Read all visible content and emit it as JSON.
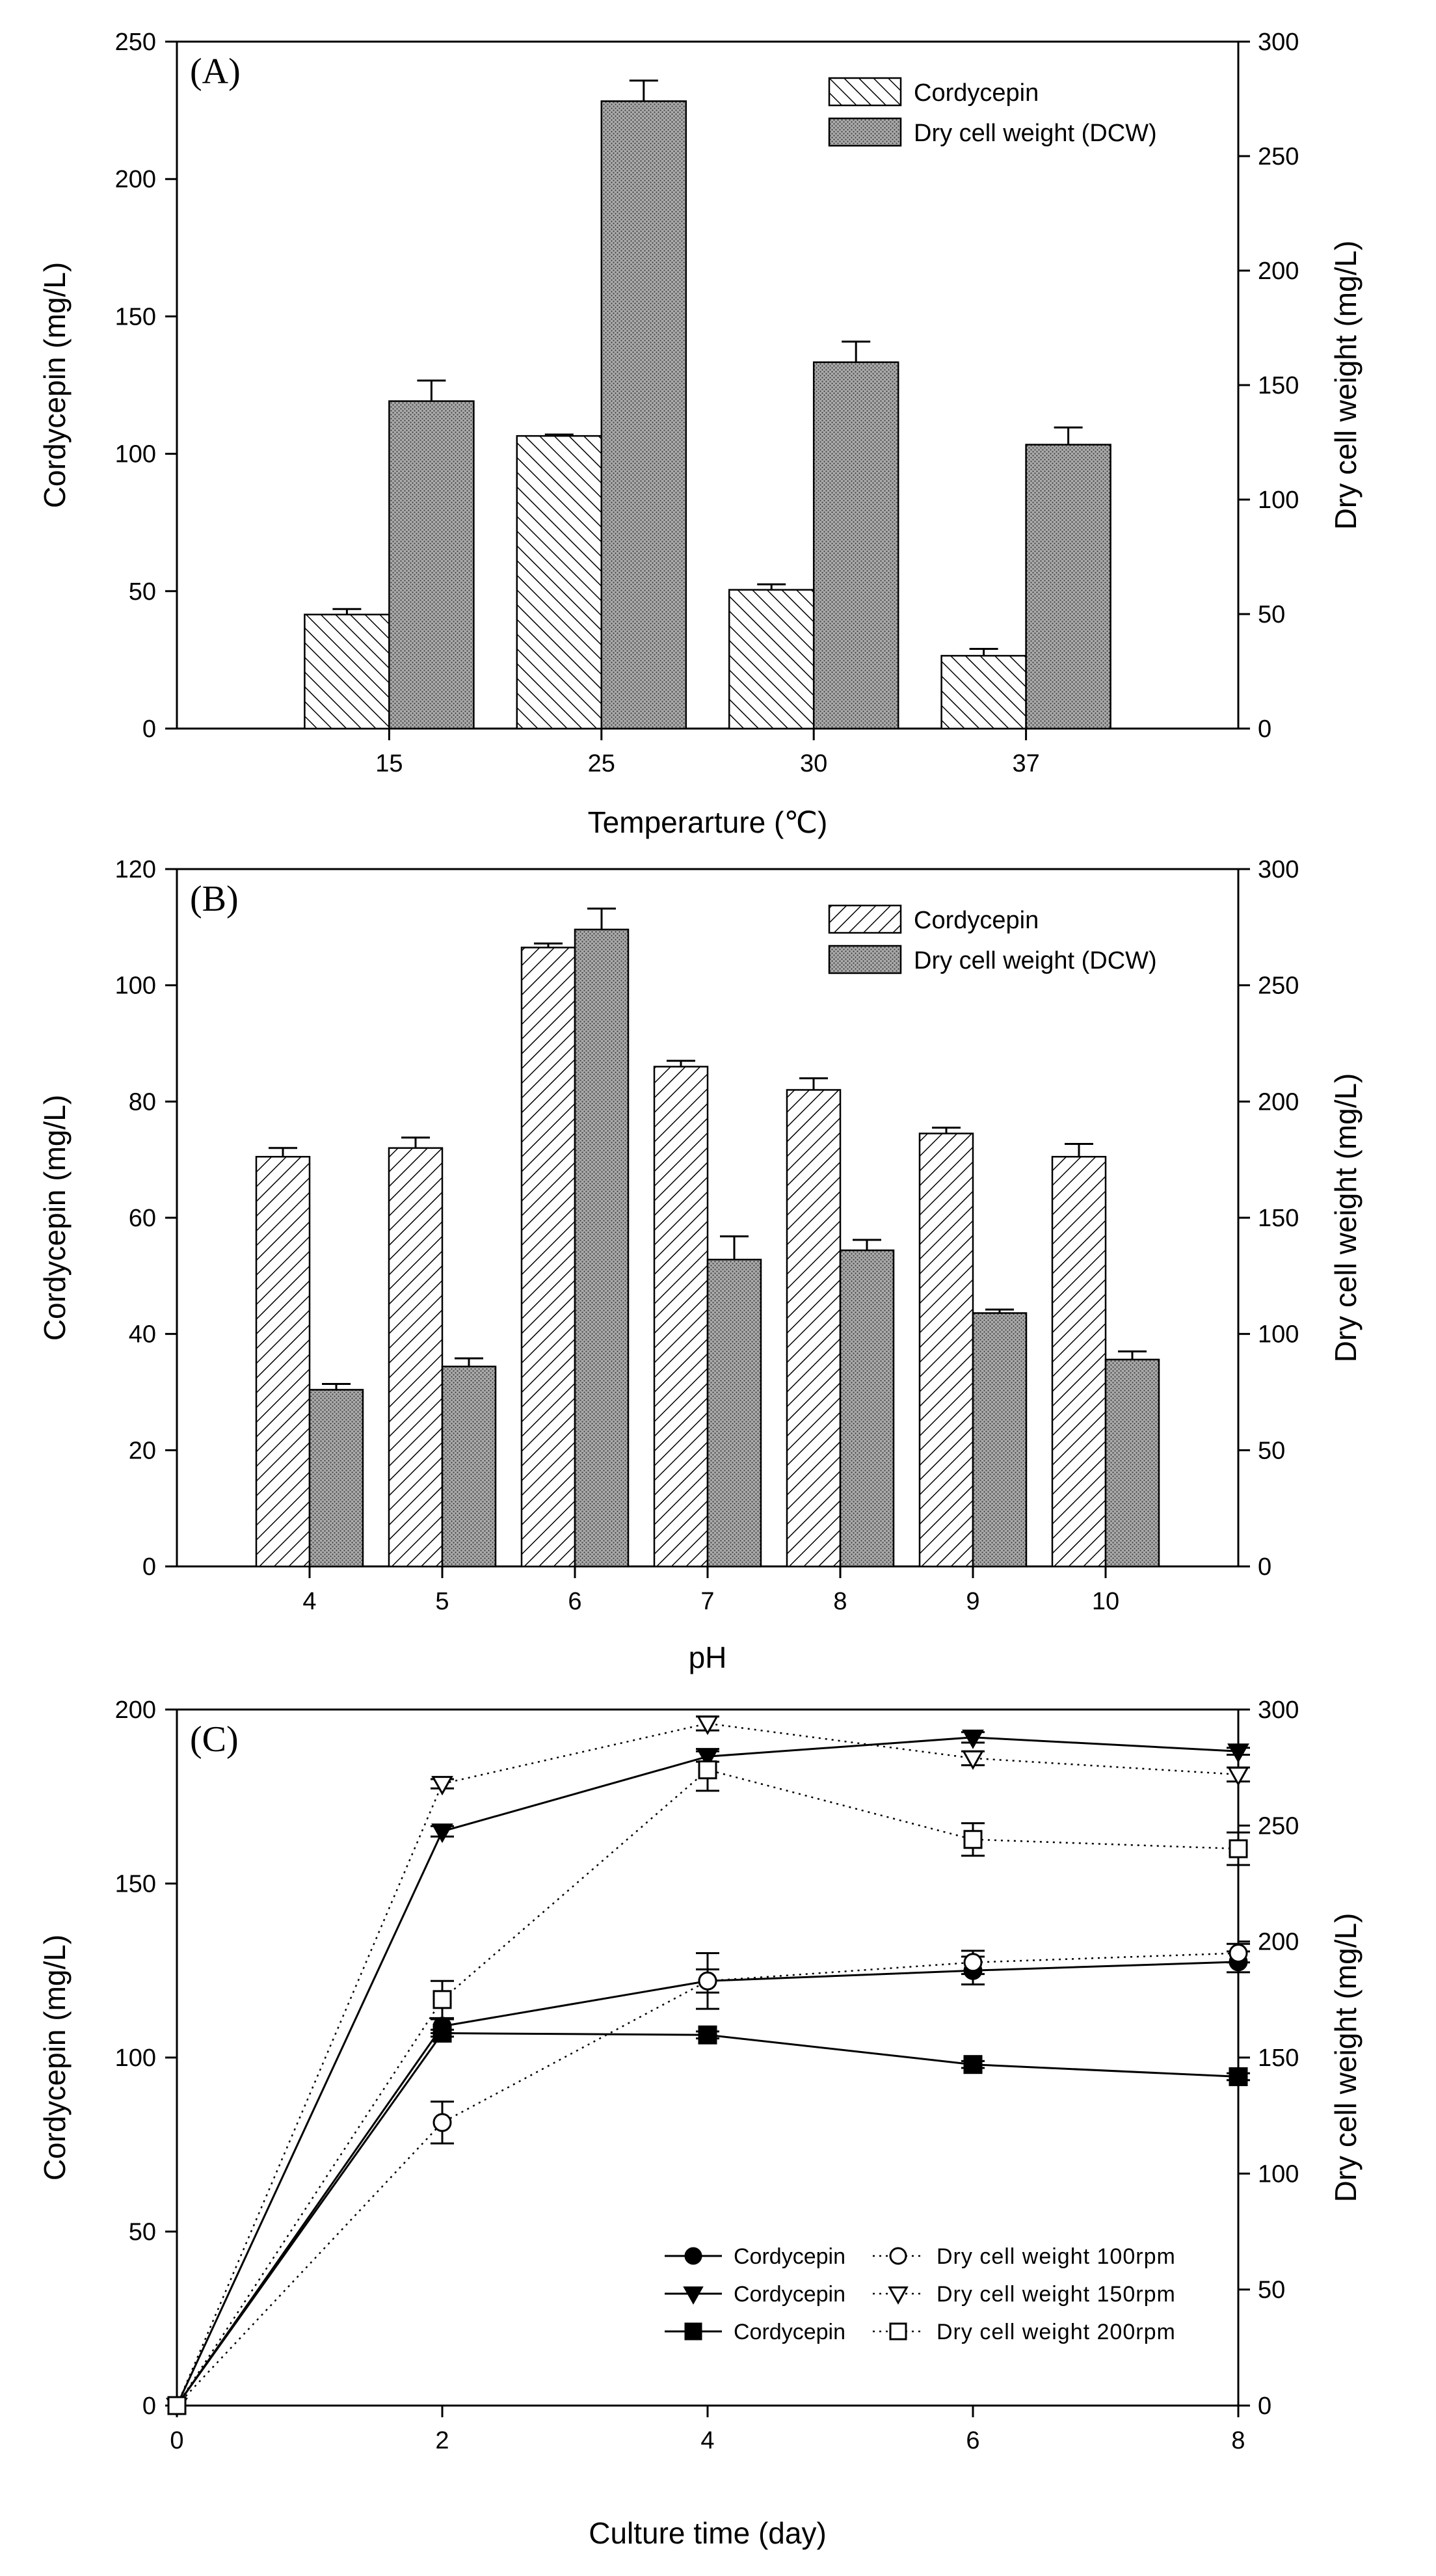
{
  "chart_data": [
    {
      "type": "bar",
      "panel_label": "(A)",
      "title": "",
      "xlabel": "Temperarture (℃)",
      "ylabel": "Cordycepin (mg/L)",
      "y2label": "Dry cell weight (mg/L)",
      "categories": [
        "15",
        "25",
        "30",
        "37"
      ],
      "ylim": [
        0,
        250
      ],
      "y2lim": [
        0,
        300
      ],
      "yticks": [
        0,
        50,
        100,
        150,
        200,
        250
      ],
      "y2ticks": [
        0,
        50,
        100,
        150,
        200,
        250,
        300
      ],
      "series": [
        {
          "name": "Cordycepin",
          "axis": "left",
          "pattern": "hatch",
          "values": [
            41.5,
            106.5,
            50.5,
            26.5
          ],
          "errors": [
            2,
            0.5,
            2,
            2.5
          ]
        },
        {
          "name": "Dry cell weight (DCW)",
          "axis": "right",
          "pattern": "stipple",
          "values": [
            143,
            274,
            160,
            124
          ],
          "errors": [
            9,
            9,
            9,
            7.5
          ]
        }
      ],
      "legend": "top-right",
      "grid": false
    },
    {
      "type": "bar",
      "panel_label": "(B)",
      "title": "",
      "xlabel": "pH",
      "ylabel": "Cordycepin (mg/L)",
      "y2label": "Dry cell weight (mg/L)",
      "categories": [
        "4",
        "5",
        "6",
        "7",
        "8",
        "9",
        "10"
      ],
      "ylim": [
        0,
        120
      ],
      "y2lim": [
        0,
        300
      ],
      "yticks": [
        0,
        20,
        40,
        60,
        80,
        100,
        120
      ],
      "y2ticks": [
        0,
        50,
        100,
        150,
        200,
        250,
        300
      ],
      "series": [
        {
          "name": "Cordycepin",
          "axis": "left",
          "pattern": "hatch",
          "values": [
            70.5,
            72,
            106.5,
            86,
            82,
            74.5,
            70.5
          ],
          "errors": [
            1.5,
            1.8,
            0.7,
            1,
            2,
            1,
            2.2
          ]
        },
        {
          "name": "Dry cell weight (DCW)",
          "axis": "right",
          "pattern": "stipple",
          "values": [
            76,
            86,
            274,
            132,
            136,
            109,
            89
          ],
          "errors": [
            2.5,
            3.5,
            9,
            10,
            4.5,
            1.5,
            3.5
          ]
        }
      ],
      "legend": "top-right",
      "grid": false
    },
    {
      "type": "line",
      "panel_label": "(C)",
      "title": "",
      "xlabel": "Culture time (day)",
      "ylabel": "Cordycepin (mg/L)",
      "y2label": "Dry cell weight (mg/L)",
      "x": [
        0,
        2,
        4,
        6,
        8
      ],
      "xlim": [
        0,
        8
      ],
      "xticks": [
        0,
        2,
        4,
        6,
        8
      ],
      "ylim": [
        0,
        200
      ],
      "y2lim": [
        0,
        300
      ],
      "yticks": [
        0,
        50,
        100,
        150,
        200
      ],
      "y2ticks": [
        0,
        50,
        100,
        150,
        200,
        250,
        300
      ],
      "series": [
        {
          "name": "Cordycepin",
          "rpm": "100rpm",
          "axis": "left",
          "marker": "circle",
          "filled": true,
          "dashed": false,
          "values": [
            0,
            109,
            122,
            125,
            127.5
          ],
          "errors": [
            0,
            2,
            8,
            4,
            3
          ]
        },
        {
          "name": "Cordycepin",
          "rpm": "150rpm",
          "axis": "left",
          "marker": "triangle-down",
          "filled": true,
          "dashed": false,
          "values": [
            0,
            165,
            186.5,
            192,
            188
          ],
          "errors": [
            0,
            1.5,
            1.5,
            1.5,
            1
          ]
        },
        {
          "name": "Cordycepin",
          "rpm": "200rpm",
          "axis": "left",
          "marker": "square",
          "filled": true,
          "dashed": false,
          "values": [
            0,
            107,
            106.5,
            98,
            94.5
          ],
          "errors": [
            0,
            1,
            1,
            1,
            1
          ]
        },
        {
          "name": "Dry cell weight 100rpm",
          "axis": "right",
          "marker": "circle",
          "filled": false,
          "dashed": true,
          "values": [
            0,
            122,
            183,
            191,
            195
          ],
          "errors": [
            0,
            9,
            5,
            5,
            4
          ]
        },
        {
          "name": "Dry cell weight 150rpm",
          "axis": "right",
          "marker": "triangle-down",
          "filled": false,
          "dashed": true,
          "values": [
            0,
            268,
            294,
            279,
            272
          ],
          "errors": [
            0,
            2,
            3,
            3,
            3
          ]
        },
        {
          "name": "Dry cell weight 200rpm",
          "axis": "right",
          "marker": "square",
          "filled": false,
          "dashed": true,
          "values": [
            0,
            175,
            274,
            244,
            240
          ],
          "errors": [
            0,
            8,
            9,
            7,
            7
          ]
        }
      ],
      "legend": "bottom-right",
      "grid": false
    }
  ]
}
